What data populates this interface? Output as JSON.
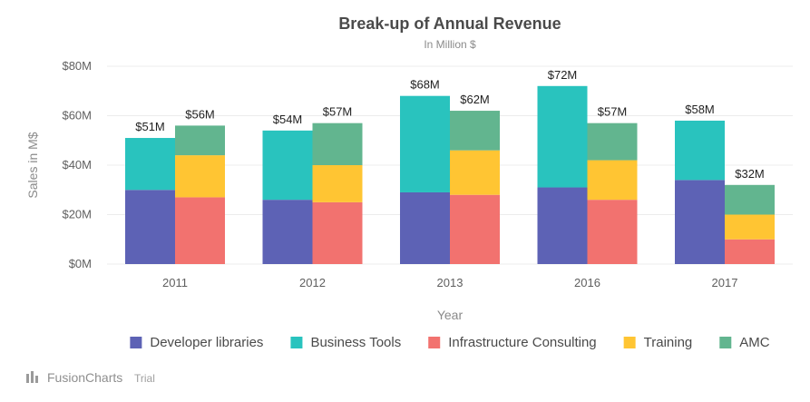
{
  "chart_data": {
    "type": "bar",
    "stacked_grouped": true,
    "title": "Break-up of Annual Revenue",
    "subtitle": "In Million $",
    "xlabel": "Year",
    "ylabel": "Sales in M$",
    "ylim": [
      0,
      80
    ],
    "yticks": [
      "$0M",
      "$20M",
      "$40M",
      "$60M",
      "$80M"
    ],
    "ytick_values": [
      0,
      20,
      40,
      60,
      80
    ],
    "grid": true,
    "legend_position": "bottom",
    "categories": [
      "2011",
      "2012",
      "2013",
      "2016",
      "2017"
    ],
    "series": [
      {
        "name": "Developer libraries",
        "stack": 1,
        "color": "#5d62b5",
        "values": [
          30,
          26,
          29,
          31,
          34
        ]
      },
      {
        "name": "Business Tools",
        "stack": 1,
        "color": "#29c3be",
        "values": [
          21,
          28,
          39,
          41,
          24
        ]
      },
      {
        "name": "Infrastructure Consulting",
        "stack": 2,
        "color": "#f2726f",
        "values": [
          27,
          25,
          28,
          26,
          10
        ]
      },
      {
        "name": "Training",
        "stack": 2,
        "color": "#ffc533",
        "values": [
          17,
          15,
          18,
          16,
          10
        ]
      },
      {
        "name": "AMC",
        "stack": 2,
        "color": "#62b58f",
        "values": [
          12,
          17,
          16,
          15,
          12
        ]
      }
    ],
    "stack_totals": [
      {
        "stack": 1,
        "labels": [
          "$51M",
          "$54M",
          "$68M",
          "$72M",
          "$58M"
        ]
      },
      {
        "stack": 2,
        "labels": [
          "$56M",
          "$57M",
          "$62M",
          "$57M",
          "$32M"
        ]
      }
    ]
  },
  "watermark": {
    "brand": "FusionCharts",
    "suffix": "Trial"
  },
  "colors": {
    "grid": "#ececec",
    "title": "#4a4a4a",
    "muted": "#8a8a8a"
  }
}
